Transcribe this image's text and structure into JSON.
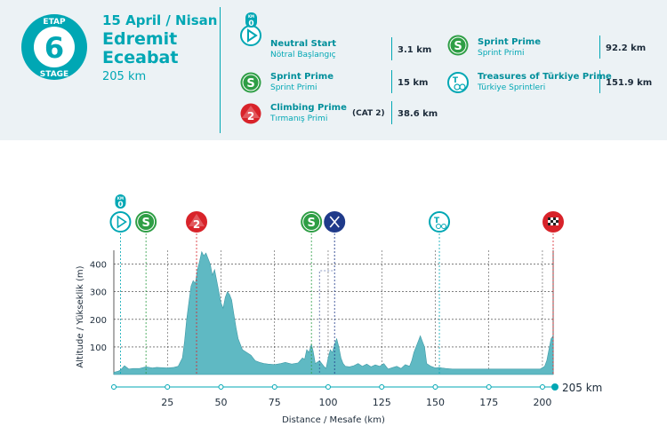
{
  "stage": {
    "etap_label": "ETAP",
    "number": "6",
    "stage_label": "STAGE",
    "date": "15 April / Nisan",
    "start": "Edremit",
    "finish": "Eceabat",
    "distance": "205 km"
  },
  "points": [
    {
      "icon": "neutral-start-icon",
      "icon_text": "0",
      "icon_top": "KM",
      "title": "Neutral Start",
      "subtitle": "Nötral Başlangıç",
      "km": "3.1 km",
      "color": "#00a7b4"
    },
    {
      "icon": "sprint-icon",
      "icon_text": "S",
      "title": "Sprint Prime",
      "subtitle": "Sprint Primi",
      "km": "15 km",
      "color": "#2e9e45"
    },
    {
      "icon": "climb-icon",
      "icon_text": "2",
      "title": "Climbing Prime",
      "subtitle": "Tırmanış Primi",
      "cat": "(CAT 2)",
      "km": "38.6 km",
      "color": "#d8232a"
    },
    {
      "icon": "sprint-icon",
      "icon_text": "S",
      "title": "Sprint Prime",
      "subtitle": "Sprint Primi",
      "km": "92.2 km",
      "color": "#2e9e45"
    },
    {
      "icon": "treasures-icon",
      "icon_text": "T",
      "title": "Treasures of Türkiye Prime",
      "subtitle": "Türkiye Sprintleri",
      "km": "151.9 km",
      "color": "#00a7b4"
    }
  ],
  "chart_data": {
    "type": "area",
    "title": "",
    "xlabel": "Distance / Mesafe  (km)",
    "ylabel": "Altitude / Yükseklik (m)",
    "xlim": [
      0,
      205
    ],
    "ylim": [
      0,
      450
    ],
    "x_ticks": [
      25,
      50,
      75,
      100,
      125,
      150,
      175,
      200
    ],
    "y_ticks": [
      100,
      200,
      300,
      400
    ],
    "end_label": "205 km",
    "profile": [
      [
        0,
        8
      ],
      [
        2,
        12
      ],
      [
        3.1,
        16
      ],
      [
        5,
        32
      ],
      [
        7,
        20
      ],
      [
        9,
        22
      ],
      [
        12,
        22
      ],
      [
        15,
        28
      ],
      [
        18,
        24
      ],
      [
        20,
        26
      ],
      [
        25,
        24
      ],
      [
        28,
        26
      ],
      [
        30,
        30
      ],
      [
        32,
        60
      ],
      [
        33,
        120
      ],
      [
        34,
        200
      ],
      [
        35,
        260
      ],
      [
        36,
        320
      ],
      [
        37,
        340
      ],
      [
        38,
        330
      ],
      [
        39,
        380
      ],
      [
        40,
        410
      ],
      [
        41,
        445
      ],
      [
        42,
        430
      ],
      [
        43,
        440
      ],
      [
        44,
        420
      ],
      [
        45,
        400
      ],
      [
        46,
        360
      ],
      [
        47,
        380
      ],
      [
        48,
        340
      ],
      [
        49,
        300
      ],
      [
        50,
        260
      ],
      [
        51,
        240
      ],
      [
        52,
        280
      ],
      [
        53,
        300
      ],
      [
        54,
        290
      ],
      [
        55,
        270
      ],
      [
        56,
        220
      ],
      [
        57,
        170
      ],
      [
        58,
        130
      ],
      [
        59,
        110
      ],
      [
        60,
        90
      ],
      [
        62,
        80
      ],
      [
        64,
        70
      ],
      [
        66,
        50
      ],
      [
        68,
        44
      ],
      [
        70,
        40
      ],
      [
        72,
        38
      ],
      [
        75,
        36
      ],
      [
        78,
        40
      ],
      [
        80,
        44
      ],
      [
        83,
        38
      ],
      [
        86,
        42
      ],
      [
        88,
        60
      ],
      [
        89,
        55
      ],
      [
        90,
        90
      ],
      [
        91,
        80
      ],
      [
        92.2,
        110
      ],
      [
        93,
        85
      ],
      [
        94,
        40
      ],
      [
        96,
        50
      ],
      [
        98,
        30
      ],
      [
        99,
        22
      ],
      [
        100,
        60
      ],
      [
        101,
        90
      ],
      [
        102,
        80
      ],
      [
        103,
        110
      ],
      [
        104,
        130
      ],
      [
        105,
        100
      ],
      [
        106,
        60
      ],
      [
        107,
        40
      ],
      [
        108,
        30
      ],
      [
        110,
        28
      ],
      [
        112,
        32
      ],
      [
        114,
        40
      ],
      [
        116,
        30
      ],
      [
        118,
        38
      ],
      [
        120,
        28
      ],
      [
        122,
        35
      ],
      [
        124,
        30
      ],
      [
        126,
        40
      ],
      [
        128,
        20
      ],
      [
        130,
        25
      ],
      [
        132,
        30
      ],
      [
        134,
        22
      ],
      [
        136,
        36
      ],
      [
        138,
        30
      ],
      [
        139,
        50
      ],
      [
        140,
        80
      ],
      [
        141,
        100
      ],
      [
        142,
        120
      ],
      [
        143,
        140
      ],
      [
        144,
        120
      ],
      [
        145,
        100
      ],
      [
        146,
        40
      ],
      [
        148,
        30
      ],
      [
        150,
        24
      ],
      [
        151.9,
        26
      ],
      [
        153,
        24
      ],
      [
        155,
        22
      ],
      [
        158,
        20
      ],
      [
        160,
        20
      ],
      [
        165,
        20
      ],
      [
        170,
        20
      ],
      [
        175,
        20
      ],
      [
        180,
        20
      ],
      [
        185,
        20
      ],
      [
        190,
        20
      ],
      [
        195,
        20
      ],
      [
        199,
        20
      ],
      [
        201,
        30
      ],
      [
        202,
        50
      ],
      [
        203,
        90
      ],
      [
        204,
        130
      ],
      [
        205,
        140
      ],
      [
        205,
        0
      ]
    ],
    "markers": [
      {
        "km": 3.1,
        "type": "neutral-start",
        "label": "0",
        "top": "KM"
      },
      {
        "km": 15,
        "type": "sprint",
        "label": "S"
      },
      {
        "km": 38.6,
        "type": "climb",
        "label": "2"
      },
      {
        "km": 92.2,
        "type": "sprint",
        "label": "S"
      },
      {
        "km": 103,
        "type": "feed",
        "label": ""
      },
      {
        "km": 151.9,
        "type": "treasures",
        "label": "T"
      },
      {
        "km": 205,
        "type": "finish",
        "label": ""
      }
    ],
    "colors": {
      "fill": "#5fb9c3",
      "accent": "#00a7b4",
      "sprint": "#2e9e45",
      "climb": "#d8232a",
      "feed": "#1f3a8a",
      "grid": "#333333"
    }
  }
}
